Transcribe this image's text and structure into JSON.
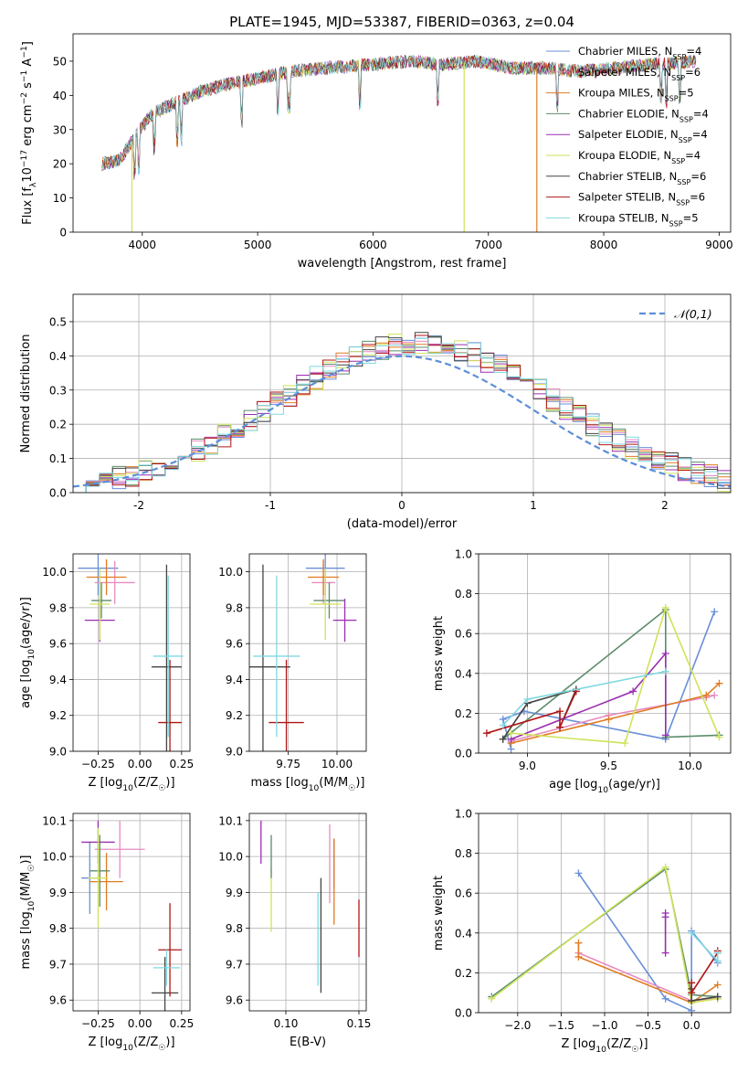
{
  "title": "PLATE=1945, MJD=53387, FIBERID=0363, z=0.04",
  "colors": {
    "Chabrier MILES": "#6a8fd8",
    "Salpeter MILES": "#e68cc0",
    "Kroupa MILES": "#e07b22",
    "Chabrier ELODIE": "#5b8c6b",
    "Salpeter ELODIE": "#9a2db0",
    "Kroupa ELODIE": "#cfe35a",
    "Chabrier STELIB": "#444444",
    "Salpeter STELIB": "#b01515",
    "Kroupa STELIB": "#7fd8e0"
  },
  "chart_data": [
    {
      "id": "spectrum",
      "type": "line",
      "xlabel": "wavelength [Angstrom, rest frame]",
      "ylabel_parts": [
        "Flux [f",
        "λ",
        "10",
        "−17",
        " erg cm",
        "−2",
        " s",
        "−1",
        " A",
        "−1",
        "]"
      ],
      "xlim": [
        3400,
        9100
      ],
      "ylim": [
        0,
        58
      ],
      "xticks": [
        4000,
        5000,
        6000,
        7000,
        8000,
        9000
      ],
      "yticks": [
        0,
        10,
        20,
        30,
        40,
        50
      ],
      "legend_loc": "right",
      "legend": [
        {
          "name": "Chabrier MILES",
          "nssp": "4"
        },
        {
          "name": "Salpeter MILES",
          "nssp": "6"
        },
        {
          "name": "Kroupa MILES",
          "nssp": "5"
        },
        {
          "name": "Chabrier ELODIE",
          "nssp": "4"
        },
        {
          "name": "Salpeter ELODIE",
          "nssp": "4"
        },
        {
          "name": "Kroupa ELODIE",
          "nssp": "4"
        },
        {
          "name": "Chabrier STELIB",
          "nssp": "6"
        },
        {
          "name": "Salpeter STELIB",
          "nssp": "6"
        },
        {
          "name": "Kroupa STELIB",
          "nssp": "5"
        }
      ],
      "continuum": {
        "x": [
          3650,
          3800,
          3900,
          4000,
          4100,
          4300,
          4500,
          4700,
          5000,
          5300,
          5600,
          6000,
          6300,
          6600,
          6900,
          7200,
          7500,
          7800,
          8100,
          8400,
          8800
        ],
        "y": [
          20,
          21,
          26,
          31,
          35,
          38,
          41,
          43,
          45,
          47,
          48,
          49,
          50,
          49,
          50,
          48,
          48,
          47,
          48,
          49,
          50
        ]
      },
      "drops": [
        {
          "series": "Kroupa ELODIE",
          "x": 3910,
          "y": 0
        },
        {
          "series": "Kroupa ELODIE",
          "x": 6790,
          "y": 0
        },
        {
          "series": "Kroupa MILES",
          "x": 7420,
          "y": 0
        }
      ]
    },
    {
      "id": "residuals",
      "type": "histogram",
      "xlabel": "(data-model)/error",
      "ylabel": "Normed distribution",
      "xlim": [
        -2.5,
        2.5
      ],
      "ylim": [
        0,
        0.58
      ],
      "xticks": [
        -2,
        -1,
        0,
        1,
        2
      ],
      "yticks": [
        0.0,
        0.1,
        0.2,
        0.3,
        0.4,
        0.5
      ],
      "legend": [
        "𝒩(0,1)"
      ],
      "legend_loc": "upper right",
      "bin_width": 0.1,
      "bin_start": -2.5,
      "normal_mean": 0,
      "normal_sigma": 1
    },
    {
      "id": "age-Z",
      "type": "errorbar",
      "xlabel_parts": [
        "Z [log",
        "10",
        "(Z/Z",
        "☉",
        ")]"
      ],
      "ylabel_parts": [
        "age  [log",
        "10",
        "(age/yr)]"
      ],
      "xlim": [
        -0.4,
        0.3
      ],
      "ylim": [
        9.0,
        10.1
      ],
      "xticks": [
        -0.25,
        0.0,
        0.25
      ],
      "xticklabels": [
        "−0.25",
        "0.00",
        "0.25"
      ],
      "yticks": [
        9.0,
        9.2,
        9.4,
        9.6,
        9.8,
        10.0
      ],
      "points": [
        {
          "series": "Chabrier MILES",
          "x": -0.25,
          "y": 10.02,
          "xerr": 0.12,
          "yerr": 0.15
        },
        {
          "series": "Salpeter MILES",
          "x": -0.15,
          "y": 9.94,
          "xerr": 0.12,
          "yerr": 0.12
        },
        {
          "series": "Kroupa MILES",
          "x": -0.2,
          "y": 9.97,
          "xerr": 0.12,
          "yerr": 0.1
        },
        {
          "series": "Chabrier ELODIE",
          "x": -0.23,
          "y": 9.84,
          "xerr": 0.06,
          "yerr": 0.1
        },
        {
          "series": "Salpeter ELODIE",
          "x": -0.24,
          "y": 9.73,
          "xerr": 0.09,
          "yerr": 0.12
        },
        {
          "series": "Kroupa ELODIE",
          "x": -0.24,
          "y": 9.82,
          "xerr": 0.06,
          "yerr": 0.2
        },
        {
          "series": "Chabrier STELIB",
          "x": 0.16,
          "y": 9.47,
          "xerr": 0.09,
          "yerr": 0.57
        },
        {
          "series": "Salpeter STELIB",
          "x": 0.18,
          "y": 9.16,
          "xerr": 0.07,
          "yerr": 0.35
        },
        {
          "series": "Kroupa STELIB",
          "x": 0.17,
          "y": 9.53,
          "xerr": 0.09,
          "yerr": 0.45
        }
      ]
    },
    {
      "id": "age-mass",
      "type": "errorbar",
      "xlabel_parts": [
        "mass [log",
        "10",
        "(M/M",
        "☉",
        ")]"
      ],
      "ylabel_parts": [],
      "xlim": [
        9.55,
        10.15
      ],
      "ylim": [
        9.0,
        10.1
      ],
      "xticks": [
        9.75,
        10.0
      ],
      "xticklabels": [
        "9.75",
        "10.00"
      ],
      "yticks": [
        9.0,
        9.2,
        9.4,
        9.6,
        9.8,
        10.0
      ],
      "points": [
        {
          "series": "Chabrier MILES",
          "x": 9.94,
          "y": 10.02,
          "xerr": 0.1,
          "yerr": 0.15
        },
        {
          "series": "Salpeter MILES",
          "x": 9.93,
          "y": 9.94,
          "xerr": 0.06,
          "yerr": 0.12
        },
        {
          "series": "Kroupa MILES",
          "x": 9.93,
          "y": 9.97,
          "xerr": 0.08,
          "yerr": 0.1
        },
        {
          "series": "Chabrier ELODIE",
          "x": 9.96,
          "y": 9.84,
          "xerr": 0.08,
          "yerr": 0.1
        },
        {
          "series": "Salpeter ELODIE",
          "x": 10.04,
          "y": 9.73,
          "xerr": 0.06,
          "yerr": 0.12
        },
        {
          "series": "Kroupa ELODIE",
          "x": 9.94,
          "y": 9.82,
          "xerr": 0.08,
          "yerr": 0.2
        },
        {
          "series": "Chabrier STELIB",
          "x": 9.62,
          "y": 9.47,
          "xerr": 0.14,
          "yerr": 0.57
        },
        {
          "series": "Salpeter STELIB",
          "x": 9.74,
          "y": 9.16,
          "xerr": 0.09,
          "yerr": 0.35
        },
        {
          "series": "Kroupa STELIB",
          "x": 9.69,
          "y": 9.53,
          "xerr": 0.12,
          "yerr": 0.45
        }
      ]
    },
    {
      "id": "weights-age",
      "type": "line",
      "xlabel_parts": [
        "age  [log",
        "10",
        "(age/yr)]"
      ],
      "ylabel": "mass weight",
      "xlim": [
        8.7,
        10.25
      ],
      "ylim": [
        0.0,
        1.0
      ],
      "xticks": [
        9.0,
        9.5,
        10.0
      ],
      "xticklabels": [
        "9.0",
        "9.5",
        "10.0"
      ],
      "yticks": [
        0.0,
        0.2,
        0.4,
        0.6,
        0.8,
        1.0
      ],
      "series": [
        {
          "name": "Chabrier MILES",
          "x": [
            10.15,
            9.85,
            8.98,
            8.85,
            8.9
          ],
          "y": [
            0.71,
            0.07,
            0.21,
            0.17,
            0.02
          ]
        },
        {
          "name": "Salpeter MILES",
          "x": [
            8.9,
            9.5,
            10.1,
            10.15
          ],
          "y": [
            0.06,
            0.19,
            0.28,
            0.29
          ]
        },
        {
          "name": "Kroupa MILES",
          "x": [
            8.9,
            9.5,
            10.1,
            10.18
          ],
          "y": [
            0.05,
            0.17,
            0.29,
            0.35
          ]
        },
        {
          "name": "Chabrier ELODIE",
          "x": [
            8.85,
            9.85,
            9.85,
            10.18
          ],
          "y": [
            0.07,
            0.72,
            0.08,
            0.09
          ]
        },
        {
          "name": "Salpeter ELODIE",
          "x": [
            8.9,
            9.65,
            9.85,
            9.85
          ],
          "y": [
            0.07,
            0.31,
            0.5,
            0.09
          ]
        },
        {
          "name": "Kroupa ELODIE",
          "x": [
            8.9,
            9.6,
            9.85,
            10.18
          ],
          "y": [
            0.1,
            0.05,
            0.73,
            0.08
          ]
        },
        {
          "name": "Chabrier STELIB",
          "x": [
            8.85,
            9.0,
            9.3,
            9.2
          ],
          "y": [
            0.07,
            0.25,
            0.32,
            0.13
          ]
        },
        {
          "name": "Salpeter STELIB",
          "x": [
            8.75,
            9.2,
            9.2,
            9.3
          ],
          "y": [
            0.1,
            0.21,
            0.13,
            0.31
          ]
        },
        {
          "name": "Kroupa STELIB",
          "x": [
            8.85,
            9.0,
            9.85
          ],
          "y": [
            0.14,
            0.27,
            0.41
          ]
        }
      ]
    },
    {
      "id": "mass-Z",
      "type": "errorbar",
      "xlabel_parts": [
        "Z [log",
        "10",
        "(Z/Z",
        "☉",
        ")]"
      ],
      "ylabel_parts": [
        "mass [log",
        "10",
        "(M/M",
        "☉",
        ")]"
      ],
      "xlim": [
        -0.4,
        0.3
      ],
      "ylim": [
        9.57,
        10.12
      ],
      "xticks": [
        -0.25,
        0.0,
        0.25
      ],
      "xticklabels": [
        "−0.25",
        "0.00",
        "0.25"
      ],
      "yticks": [
        9.6,
        9.7,
        9.8,
        9.9,
        10.0,
        10.1
      ],
      "points": [
        {
          "series": "Chabrier MILES",
          "x": -0.3,
          "y": 9.94,
          "xerr": 0.05,
          "yerr": 0.1
        },
        {
          "series": "Salpeter MILES",
          "x": -0.12,
          "y": 10.02,
          "xerr": 0.15,
          "yerr": 0.08
        },
        {
          "series": "Kroupa MILES",
          "x": -0.2,
          "y": 9.93,
          "xerr": 0.1,
          "yerr": 0.08
        },
        {
          "series": "Chabrier ELODIE",
          "x": -0.24,
          "y": 9.96,
          "xerr": 0.06,
          "yerr": 0.1
        },
        {
          "series": "Salpeter ELODIE",
          "x": -0.25,
          "y": 10.04,
          "xerr": 0.1,
          "yerr": 0.06
        },
        {
          "series": "Kroupa ELODIE",
          "x": -0.25,
          "y": 9.94,
          "xerr": 0.06,
          "yerr": 0.14
        },
        {
          "series": "Chabrier STELIB",
          "x": 0.15,
          "y": 9.62,
          "xerr": 0.08,
          "yerr": 0.1
        },
        {
          "series": "Salpeter STELIB",
          "x": 0.18,
          "y": 9.74,
          "xerr": 0.07,
          "yerr": 0.13
        },
        {
          "series": "Kroupa STELIB",
          "x": 0.16,
          "y": 9.69,
          "xerr": 0.08,
          "yerr": 0.05
        }
      ]
    },
    {
      "id": "mass-EBV",
      "type": "errorbar",
      "xlabel": "E(B-V)",
      "ylabel_parts": [],
      "xlim": [
        0.075,
        0.155
      ],
      "ylim": [
        9.57,
        10.12
      ],
      "xticks": [
        0.1,
        0.15
      ],
      "xticklabels": [
        "0.10",
        "0.15"
      ],
      "yticks": [
        9.6,
        9.7,
        9.8,
        9.9,
        10.0,
        10.1
      ],
      "points": [
        {
          "series": "Salpeter ELODIE",
          "x": 0.083,
          "y": 10.04,
          "xerr": 0.0,
          "yerr": 0.06
        },
        {
          "series": "Kroupa ELODIE",
          "x": 0.09,
          "y": 9.88,
          "xerr": 0.0,
          "yerr": 0.09
        },
        {
          "series": "Chabrier ELODIE",
          "x": 0.09,
          "y": 10.0,
          "xerr": 0.0,
          "yerr": 0.06
        },
        {
          "series": "Kroupa STELIB",
          "x": 0.122,
          "y": 9.77,
          "xerr": 0.0,
          "yerr": 0.13
        },
        {
          "series": "Chabrier STELIB",
          "x": 0.124,
          "y": 9.78,
          "xerr": 0.0,
          "yerr": 0.16
        },
        {
          "series": "Salpeter MILES",
          "x": 0.13,
          "y": 9.98,
          "xerr": 0.0,
          "yerr": 0.11
        },
        {
          "series": "Chabrier MILES",
          "x": 0.133,
          "y": 9.98,
          "xerr": 0.0,
          "yerr": 0.07
        },
        {
          "series": "Kroupa MILES",
          "x": 0.133,
          "y": 9.93,
          "xerr": 0.0,
          "yerr": 0.12
        },
        {
          "series": "Salpeter STELIB",
          "x": 0.15,
          "y": 9.8,
          "xerr": 0.0,
          "yerr": 0.08
        }
      ]
    },
    {
      "id": "weights-Z",
      "type": "line",
      "xlabel_parts": [
        "Z [log",
        "10",
        "(Z/Z",
        "☉",
        ")]"
      ],
      "ylabel": "mass weight",
      "xlim": [
        -2.45,
        0.45
      ],
      "ylim": [
        0.0,
        1.0
      ],
      "xticks": [
        -2.0,
        -1.5,
        -1.0,
        -0.5,
        0.0
      ],
      "xticklabels": [
        "−2.0",
        "−1.5",
        "−1.0",
        "−0.5",
        "0.0"
      ],
      "yticks": [
        0.0,
        0.2,
        0.4,
        0.6,
        0.8,
        1.0
      ],
      "series": [
        {
          "name": "Chabrier MILES",
          "x": [
            -1.3,
            -0.3,
            0.0,
            0.0,
            0.3
          ],
          "y": [
            0.7,
            0.07,
            0.01,
            0.41,
            0.25
          ]
        },
        {
          "name": "Salpeter MILES",
          "x": [
            -1.3,
            0.0,
            0.3
          ],
          "y": [
            0.3,
            0.06,
            0.07
          ]
        },
        {
          "name": "Kroupa MILES",
          "x": [
            -1.3,
            -1.3,
            0.0,
            0.3
          ],
          "y": [
            0.35,
            0.28,
            0.05,
            0.14
          ]
        },
        {
          "name": "Chabrier ELODIE",
          "x": [
            -2.3,
            -0.3,
            0.0,
            0.3
          ],
          "y": [
            0.08,
            0.72,
            0.09,
            0.08
          ]
        },
        {
          "name": "Salpeter ELODIE",
          "x": [
            -0.3,
            -0.3,
            -0.3
          ],
          "y": [
            0.5,
            0.3,
            0.48
          ]
        },
        {
          "name": "Kroupa ELODIE",
          "x": [
            -2.3,
            -0.3,
            0.0,
            0.3
          ],
          "y": [
            0.07,
            0.73,
            0.05,
            0.07
          ]
        },
        {
          "name": "Chabrier STELIB",
          "x": [
            0.0,
            0.0,
            0.3
          ],
          "y": [
            0.12,
            0.06,
            0.08
          ]
        },
        {
          "name": "Salpeter STELIB",
          "x": [
            0.0,
            0.0,
            0.3,
            0.3
          ],
          "y": [
            0.15,
            0.1,
            0.3,
            0.31
          ]
        },
        {
          "name": "Kroupa STELIB",
          "x": [
            0.0,
            0.3,
            0.3
          ],
          "y": [
            0.4,
            0.26,
            0.3
          ]
        }
      ]
    }
  ]
}
